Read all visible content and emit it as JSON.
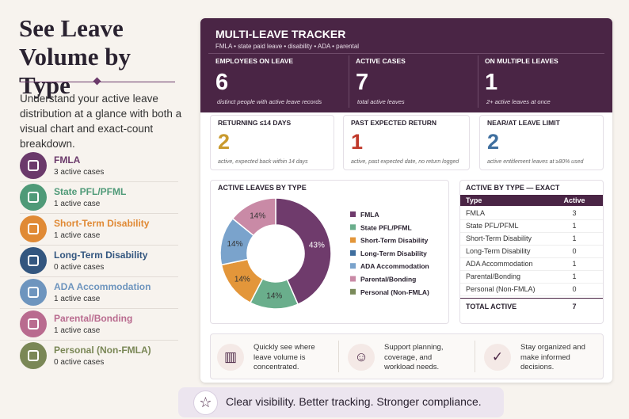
{
  "header": {
    "title": "See Leave Volume by Type",
    "description": "Understand your active leave distribution at a glance with both a visual chart and exact-count breakdown."
  },
  "leave_types": [
    {
      "name": "FMLA",
      "cases": "3 active cases",
      "color": "#6b3a6b"
    },
    {
      "name": "State PFL/PFML",
      "cases": "1 active case",
      "color": "#4f9a78"
    },
    {
      "name": "Short-Term Disability",
      "cases": "1 active case",
      "color": "#e08a35"
    },
    {
      "name": "Long-Term Disability",
      "cases": "0 active cases",
      "color": "#33567f"
    },
    {
      "name": "ADA Accommodation",
      "cases": "1 active case",
      "color": "#6e95be"
    },
    {
      "name": "Parental/Bonding",
      "cases": "1 active case",
      "color": "#b96b8f"
    },
    {
      "name": "Personal (Non-FMLA)",
      "cases": "0 active cases",
      "color": "#7a8756"
    }
  ],
  "tracker": {
    "title": "MULTI-LEAVE TRACKER",
    "subtitle": "FMLA • state paid leave • disability • ADA • parental",
    "stats": [
      {
        "label": "EMPLOYEES ON LEAVE",
        "value": 6,
        "note": "distinct people with active leave records"
      },
      {
        "label": "ACTIVE CASES",
        "value": 7,
        "note": "total active leaves"
      },
      {
        "label": "ON MULTIPLE LEAVES",
        "value": 1,
        "note": "2+ active leaves at once"
      }
    ],
    "cards": [
      {
        "label": "RETURNING ≤14 DAYS",
        "value": 2,
        "note": "active, expected back within 14 days",
        "color": "#c99a2e"
      },
      {
        "label": "PAST EXPECTED RETURN",
        "value": 1,
        "note": "active, past expected date, no return logged",
        "color": "#c0392b"
      },
      {
        "label": "NEAR/AT LEAVE LIMIT",
        "value": 2,
        "note": "active entitlement leaves at ≥80% used",
        "color": "#3f6f9f"
      }
    ]
  },
  "chart_data": {
    "type": "donut",
    "title": "ACTIVE LEAVES BY TYPE",
    "categories": [
      "FMLA",
      "State PFL/PFML",
      "Short-Term Disability",
      "Long-Term Disability",
      "ADA Accommodation",
      "Parental/Bonding",
      "Personal (Non-FMLA)"
    ],
    "values": [
      43,
      14,
      14,
      0,
      14,
      14,
      0
    ],
    "value_labels": [
      "43%",
      "14%",
      "14%",
      null,
      "14%",
      "14%",
      null
    ],
    "colors": [
      "#6f3b6c",
      "#6aae8c",
      "#e3963a",
      "#3f6e9e",
      "#7aa3cc",
      "#c98aa6",
      "#7a8a5a"
    ],
    "legend": "right"
  },
  "table": {
    "title": "ACTIVE BY TYPE — EXACT",
    "header": [
      "Type",
      "Active"
    ],
    "rows": [
      [
        "FMLA",
        3
      ],
      [
        "State PFL/PFML",
        1
      ],
      [
        "Short-Term Disability",
        1
      ],
      [
        "Long-Term Disability",
        0
      ],
      [
        "ADA Accommodation",
        1
      ],
      [
        "Parental/Bonding",
        1
      ],
      [
        "Personal (Non-FMLA)",
        0
      ]
    ],
    "total": [
      "TOTAL ACTIVE",
      7
    ]
  },
  "features": [
    "Quickly see where leave volume is concentrated.",
    "Support planning, coverage, and workload needs.",
    "Stay organized and make informed decisions."
  ],
  "banner": "Clear visibility. Better tracking. Stronger compliance."
}
